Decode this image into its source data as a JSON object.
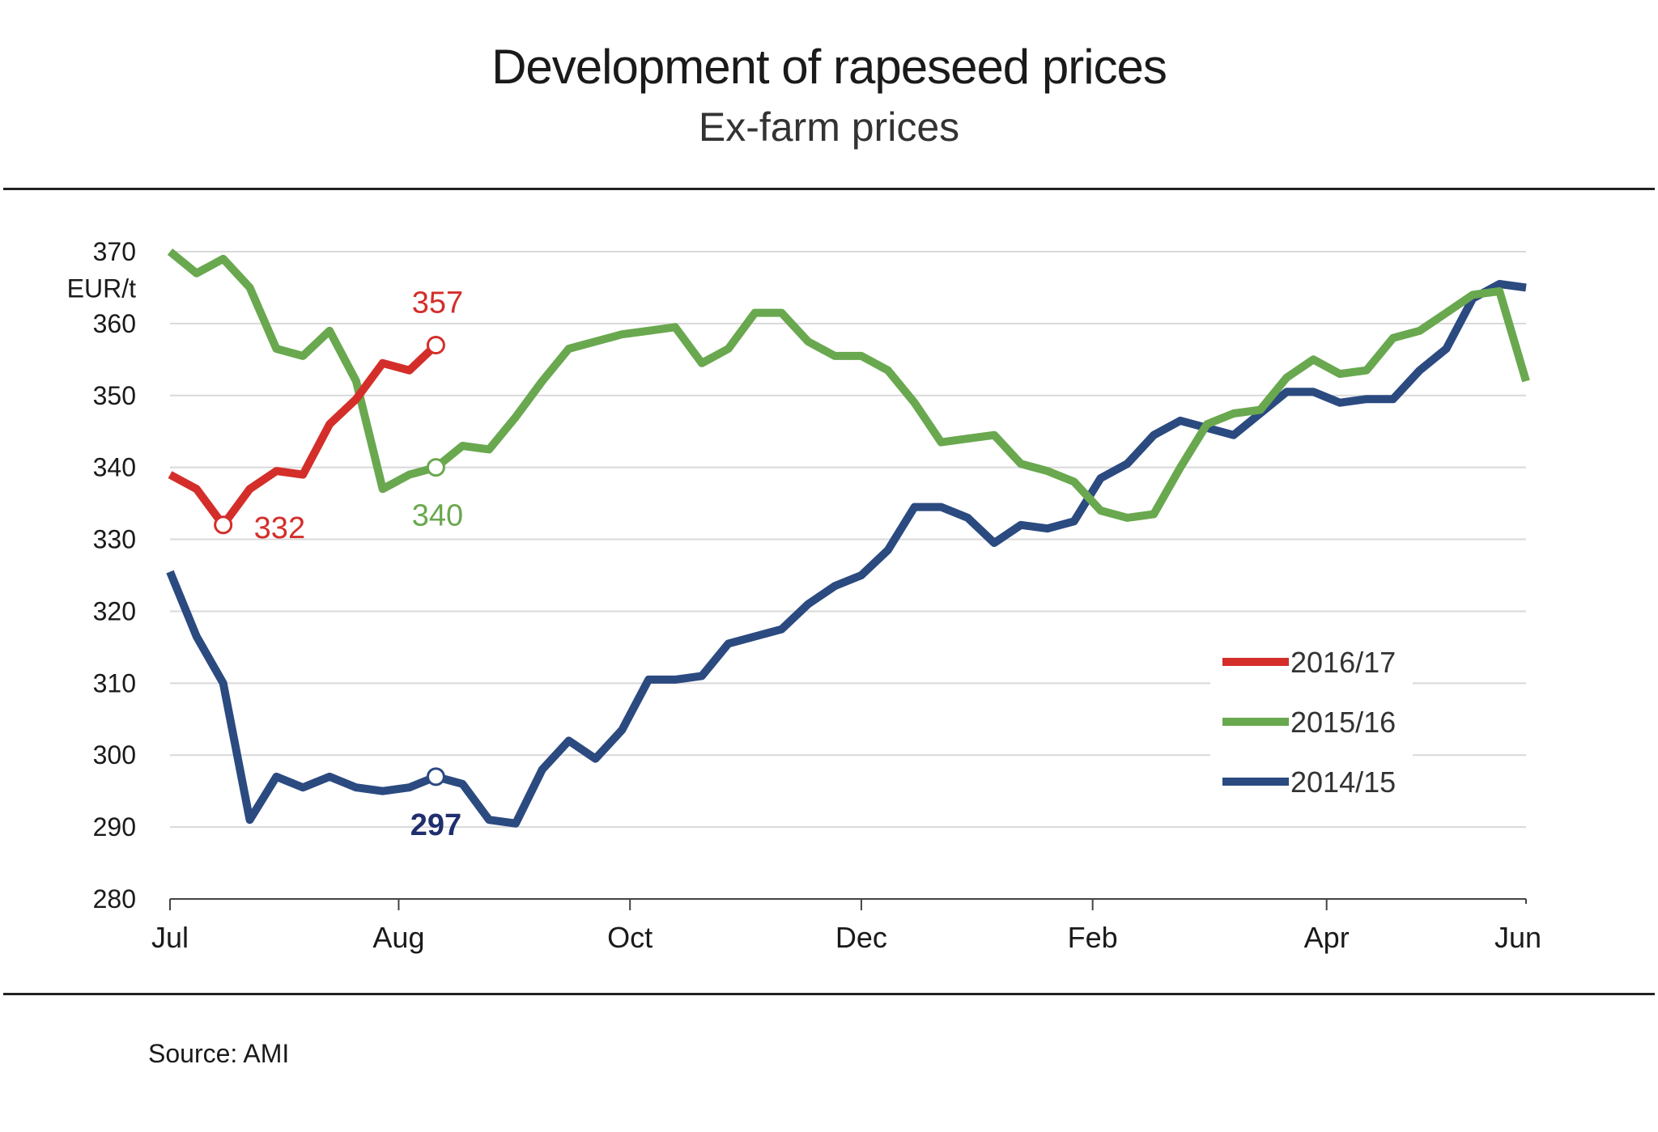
{
  "title": "Development of rapeseed prices",
  "subtitle": "Ex-farm prices",
  "source": "Source: AMI",
  "colors": {
    "2016/17": "#d42e2a",
    "2015/16": "#69a84f",
    "2014/15": "#2b4a80",
    "grid": "#d9d9d9",
    "axis": "#444444"
  },
  "chart_data": {
    "type": "line",
    "title": "Development of rapeseed prices",
    "subtitle": "Ex-farm prices",
    "ylabel": "EUR/t",
    "ylim": [
      280,
      370
    ],
    "yticks": [
      280,
      290,
      300,
      310,
      320,
      330,
      340,
      350,
      360,
      370
    ],
    "xticks": [
      "Jul",
      "Aug",
      "Oct",
      "Dec",
      "Feb",
      "Apr",
      "Jun"
    ],
    "grid": true,
    "legend_position": "bottom-right",
    "series": [
      {
        "name": "2016/17",
        "color": "#d42e2a",
        "values": [
          339,
          337,
          332,
          337,
          339.5,
          339,
          346,
          349.5,
          354.5,
          353.5,
          357
        ]
      },
      {
        "name": "2015/16",
        "color": "#69a84f",
        "values": [
          370,
          367,
          369,
          365,
          356.5,
          355.5,
          359,
          352,
          337,
          339,
          340,
          343,
          342.5,
          347,
          352,
          356.5,
          357.5,
          358.5,
          359,
          359.5,
          354.5,
          356.5,
          361.5,
          361.5,
          357.5,
          355.5,
          355.5,
          353.5,
          349,
          343.5,
          344,
          344.5,
          340.5,
          339.5,
          338,
          334,
          333,
          333.5,
          340,
          346,
          347.5,
          348,
          352.5,
          355,
          353,
          353.5,
          358,
          359,
          361.5,
          364,
          364.5,
          352
        ]
      },
      {
        "name": "2014/15",
        "color": "#2b4a80",
        "values": [
          325.5,
          316.5,
          310,
          291,
          297,
          295.5,
          297,
          295.5,
          295,
          295.5,
          297,
          296,
          291,
          290.5,
          298,
          302,
          299.5,
          303.5,
          310.5,
          310.5,
          311,
          315.5,
          316.5,
          317.5,
          321,
          323.5,
          325,
          328.5,
          334.5,
          334.5,
          333,
          329.5,
          332,
          331.5,
          332.5,
          338.5,
          340.5,
          344.5,
          346.5,
          345.5,
          344.5,
          347.5,
          350.5,
          350.5,
          349,
          349.5,
          349.5,
          353.5,
          356.5,
          363.5,
          365.5,
          365
        ]
      }
    ],
    "annotations": [
      {
        "series": "2016/17",
        "index": 2,
        "label": "332",
        "color": "#d42e2a"
      },
      {
        "series": "2016/17",
        "index": 10,
        "label": "357",
        "color": "#d42e2a"
      },
      {
        "series": "2015/16",
        "index": 10,
        "label": "340",
        "color": "#69a84f"
      },
      {
        "series": "2014/15",
        "index": 10,
        "label": "297",
        "color": "#1f2f6e",
        "bold": true
      }
    ]
  }
}
